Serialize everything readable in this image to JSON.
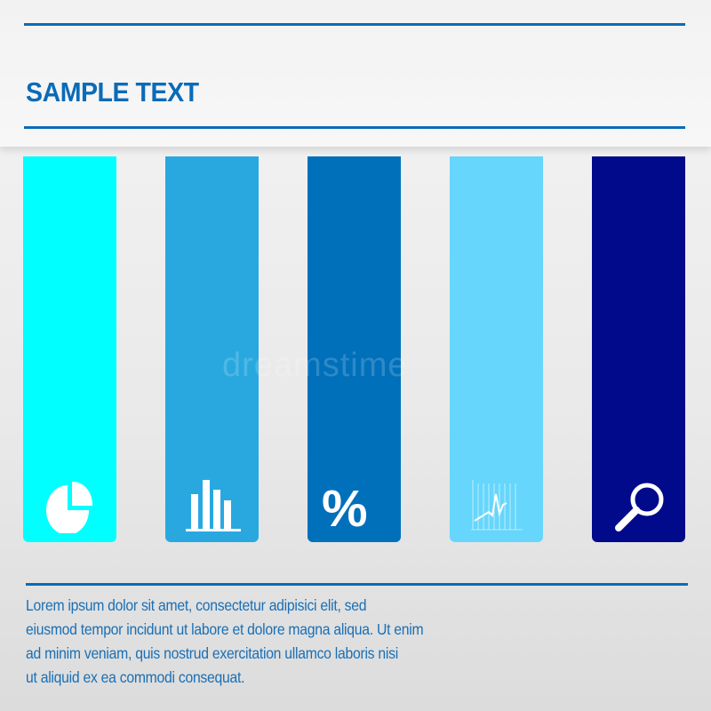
{
  "header": {
    "title": "SAMPLE TEXT"
  },
  "columns": [
    {
      "color": "#00ffff",
      "icon": "pie-chart-icon"
    },
    {
      "color": "#29a8e0",
      "icon": "bar-chart-icon"
    },
    {
      "color": "#0070bb",
      "icon": "percent-icon",
      "glyph": "%"
    },
    {
      "color": "#66d6fc",
      "icon": "line-chart-icon"
    },
    {
      "color": "#010a8a",
      "icon": "magnifier-icon"
    }
  ],
  "body": {
    "lines": [
      "Lorem ipsum dolor sit amet, consectetur adipisici elit, sed",
      "eiusmod tempor incidunt ut labore et dolore magna aliqua. Ut enim",
      "ad minim veniam, quis nostrud exercitation ullamco laboris nisi",
      "ut aliquid ex ea commodi consequat."
    ]
  },
  "watermark": "dreamstime",
  "accent": "#0a6bb8"
}
